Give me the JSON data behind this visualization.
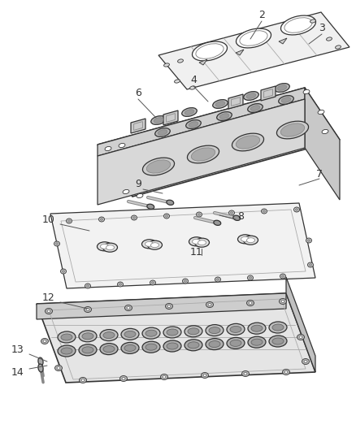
{
  "background_color": "#ffffff",
  "line_color": "#333333",
  "label_color": "#333333",
  "label_fontsize": 9,
  "leader_line_color": "#555555"
}
